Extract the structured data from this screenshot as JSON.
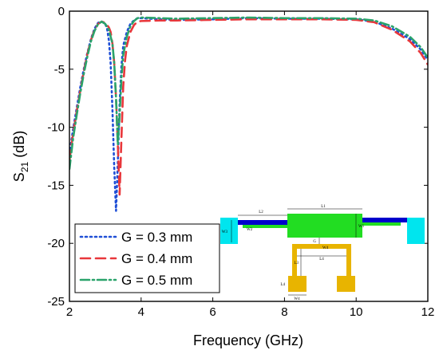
{
  "chart_data": {
    "type": "line",
    "xlabel": "Frequency (GHz)",
    "ylabel_main": "S",
    "ylabel_sub": "21",
    "ylabel_unit": " (dB)",
    "xlim": [
      2,
      12
    ],
    "ylim": [
      -25,
      0
    ],
    "xticks": [
      2,
      4,
      6,
      8,
      10,
      12
    ],
    "yticks": [
      0,
      -5,
      -10,
      -15,
      -20,
      -25
    ],
    "legend_position": "bottom-left",
    "series": [
      {
        "name": "G = 0.3 mm",
        "color": "#1f4fd6",
        "dash": "dotted",
        "x": [
          2.0,
          2.1,
          2.2,
          2.3,
          2.4,
          2.5,
          2.6,
          2.7,
          2.8,
          2.9,
          3.0,
          3.05,
          3.1,
          3.15,
          3.2,
          3.25,
          3.3,
          3.35,
          3.4,
          3.45,
          3.5,
          3.6,
          3.7,
          3.8,
          3.9,
          4.0,
          4.5,
          5.0,
          6.0,
          7.0,
          8.0,
          9.0,
          10.0,
          10.5,
          11.0,
          11.5,
          11.8,
          12.0
        ],
        "y": [
          -12.3,
          -10.2,
          -8.4,
          -6.6,
          -5.0,
          -3.6,
          -2.4,
          -1.5,
          -1.0,
          -0.9,
          -1.1,
          -1.5,
          -2.5,
          -4.5,
          -8.5,
          -13.5,
          -17.2,
          -13.0,
          -8.0,
          -4.8,
          -3.0,
          -1.8,
          -1.1,
          -0.8,
          -0.6,
          -0.6,
          -0.7,
          -0.75,
          -0.7,
          -0.6,
          -0.65,
          -0.65,
          -0.7,
          -0.9,
          -1.5,
          -2.4,
          -3.3,
          -4.2
        ]
      },
      {
        "name": "G = 0.4 mm",
        "color": "#e8373b",
        "dash": "dashed",
        "x": [
          2.0,
          2.1,
          2.2,
          2.3,
          2.4,
          2.5,
          2.6,
          2.7,
          2.8,
          2.9,
          3.0,
          3.1,
          3.15,
          3.2,
          3.25,
          3.3,
          3.35,
          3.4,
          3.45,
          3.5,
          3.55,
          3.6,
          3.7,
          3.8,
          3.9,
          4.0,
          4.5,
          5.0,
          6.0,
          7.0,
          8.0,
          9.0,
          10.0,
          10.5,
          11.0,
          11.5,
          11.8,
          12.0
        ],
        "y": [
          -12.8,
          -10.6,
          -8.7,
          -6.9,
          -5.2,
          -3.7,
          -2.5,
          -1.6,
          -1.1,
          -0.9,
          -1.0,
          -1.4,
          -1.8,
          -2.8,
          -4.5,
          -7.5,
          -11.5,
          -15.8,
          -11.0,
          -6.5,
          -4.3,
          -3.0,
          -1.8,
          -1.2,
          -0.9,
          -0.85,
          -0.8,
          -0.8,
          -0.75,
          -0.7,
          -0.7,
          -0.7,
          -0.75,
          -0.95,
          -1.6,
          -2.6,
          -3.6,
          -4.6
        ]
      },
      {
        "name": "G = 0.5 mm",
        "color": "#2aa36b",
        "dash": "dashdot",
        "x": [
          2.0,
          2.1,
          2.2,
          2.3,
          2.4,
          2.5,
          2.6,
          2.7,
          2.8,
          2.9,
          3.0,
          3.1,
          3.2,
          3.25,
          3.3,
          3.35,
          3.4,
          3.45,
          3.5,
          3.6,
          3.7,
          3.8,
          3.9,
          4.0,
          4.5,
          5.0,
          6.0,
          7.0,
          8.0,
          9.0,
          10.0,
          10.5,
          11.0,
          11.5,
          11.8,
          12.0
        ],
        "y": [
          -13.6,
          -11.0,
          -9.0,
          -7.1,
          -5.4,
          -3.9,
          -2.6,
          -1.7,
          -1.1,
          -0.9,
          -1.1,
          -1.6,
          -2.8,
          -4.5,
          -7.5,
          -11.5,
          -9.0,
          -5.8,
          -3.8,
          -2.2,
          -1.3,
          -0.85,
          -0.6,
          -0.55,
          -0.6,
          -0.65,
          -0.6,
          -0.55,
          -0.6,
          -0.6,
          -0.65,
          -0.8,
          -1.3,
          -2.2,
          -3.1,
          -4.0
        ]
      }
    ],
    "inset": {
      "labels": {
        "l1": "L1",
        "l2": "L2",
        "l3": "L3",
        "l4": "L4",
        "w1": "W1",
        "w2": "W2",
        "w3": "W3",
        "w4": "W4",
        "g": "G"
      }
    }
  }
}
